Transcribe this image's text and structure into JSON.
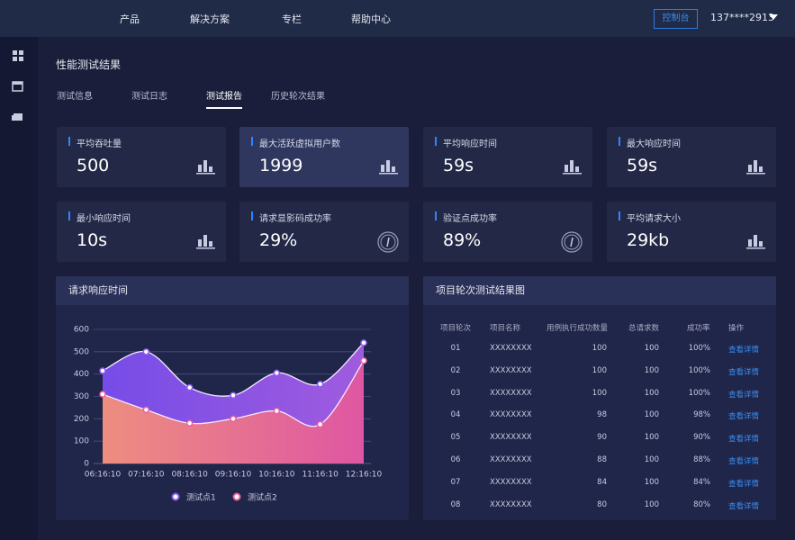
{
  "nav": {
    "items": [
      "产品",
      "解决方案",
      "专栏",
      "帮助中心"
    ],
    "console_button": "控制台",
    "user": "137****2913"
  },
  "page_title": "性能测试结果",
  "tabs": {
    "items": [
      "测试信息",
      "测试日志",
      "测试报告",
      "历史轮次结果"
    ],
    "active": 2
  },
  "cards": [
    {
      "label": "平均吞吐量",
      "value": "500"
    },
    {
      "label": "最大活跃虚拟用户数",
      "value": "1999"
    },
    {
      "label": "平均响应时间",
      "value": "59s"
    },
    {
      "label": "最大响应时间",
      "value": "59s"
    },
    {
      "label": "最小响应时间",
      "value": "10s"
    },
    {
      "label": "请求显影码成功率",
      "value": "29%"
    },
    {
      "label": "验证点成功率",
      "value": "89%"
    },
    {
      "label": "平均请求大小",
      "value": "29kb"
    }
  ],
  "chart_panel_title": "请求响应时间",
  "chart_data": {
    "type": "line",
    "area": true,
    "categories": [
      "06:16:10",
      "07:16:10",
      "08:16:10",
      "09:16:10",
      "10:16:10",
      "11:16:10",
      "12:16:10"
    ],
    "series": [
      {
        "name": "测试点1",
        "color": "#8b5cf6",
        "values": [
          415,
          500,
          340,
          305,
          405,
          355,
          540
        ]
      },
      {
        "name": "测试点2",
        "color": "#ec5fa0",
        "values": [
          310,
          240,
          180,
          200,
          235,
          175,
          460
        ]
      }
    ],
    "ylim": [
      0,
      600
    ],
    "yticks": [
      0,
      100,
      200,
      300,
      400,
      500,
      600
    ],
    "grid": true
  },
  "table": {
    "title": "项目轮次测试结果图",
    "columns": [
      "项目轮次",
      "项目名称",
      "用例执行成功数量",
      "总请求数",
      "成功率",
      "操作"
    ],
    "rows": [
      [
        "01",
        "XXXXXXXX",
        "100",
        "100",
        "100%",
        "查看详情"
      ],
      [
        "02",
        "XXXXXXXX",
        "100",
        "100",
        "100%",
        "查看详情"
      ],
      [
        "03",
        "XXXXXXXX",
        "100",
        "100",
        "100%",
        "查看详情"
      ],
      [
        "04",
        "XXXXXXXX",
        "98",
        "100",
        "98%",
        "查看详情"
      ],
      [
        "05",
        "XXXXXXXX",
        "90",
        "100",
        "90%",
        "查看详情"
      ],
      [
        "06",
        "XXXXXXXX",
        "88",
        "100",
        "88%",
        "查看详情"
      ],
      [
        "07",
        "XXXXXXXX",
        "84",
        "100",
        "84%",
        "查看详情"
      ],
      [
        "08",
        "XXXXXXXX",
        "80",
        "100",
        "80%",
        "查看详情"
      ]
    ]
  }
}
